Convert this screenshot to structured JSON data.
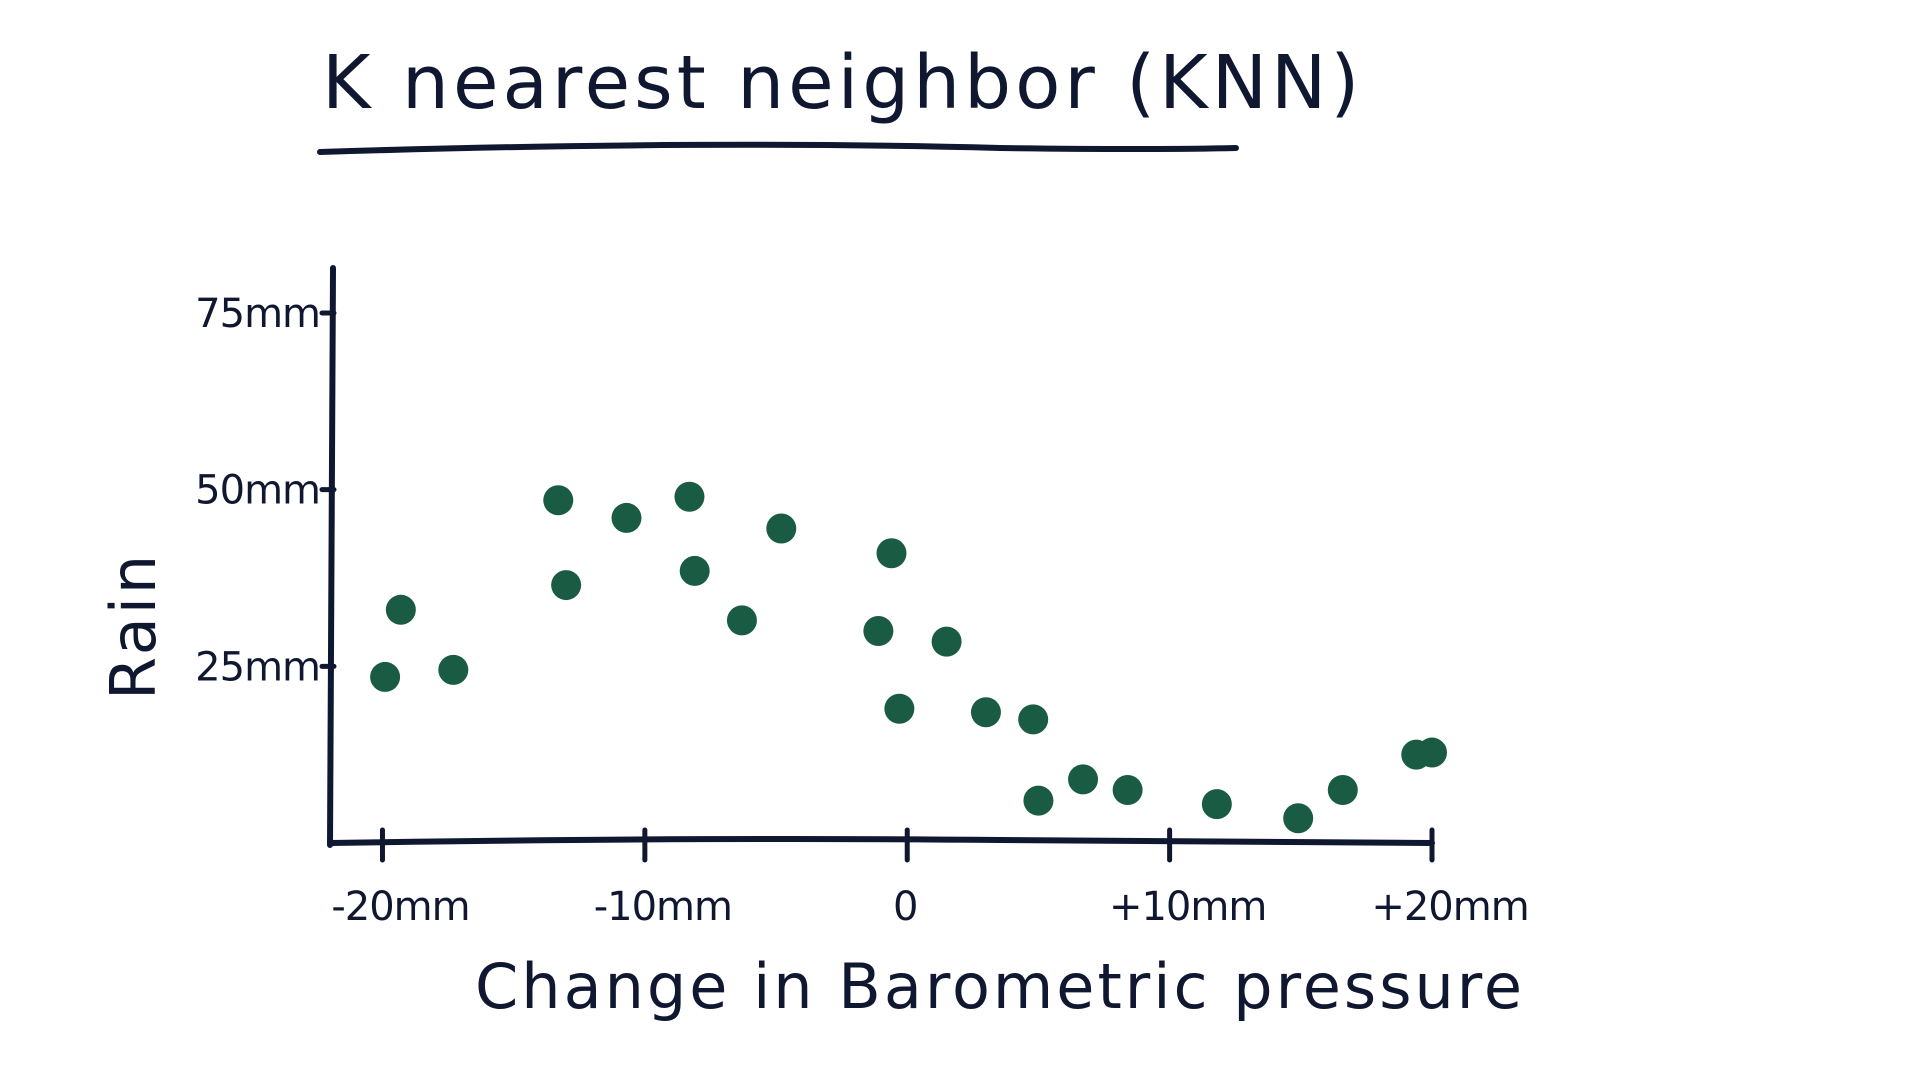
{
  "chart_data": {
    "type": "scatter",
    "title": "K nearest neighbor (KNN)",
    "xlabel": "Change in Barometric pressure",
    "ylabel": "Rain",
    "xlim": [
      -22,
      20
    ],
    "ylim": [
      0,
      75
    ],
    "x_ticks": [
      {
        "value": -20,
        "label": "-20mm"
      },
      {
        "value": -10,
        "label": "-10mm"
      },
      {
        "value": 0,
        "label": "0"
      },
      {
        "value": 10,
        "label": "+10mm"
      },
      {
        "value": 20,
        "label": "+20mm"
      }
    ],
    "y_ticks": [
      {
        "value": 75,
        "label": "75mm"
      },
      {
        "value": 50,
        "label": "50mm"
      },
      {
        "value": 25,
        "label": "25mm"
      }
    ],
    "grid": false,
    "point_color": "#1a5c43",
    "axis_color": "#0f1830",
    "points": [
      {
        "x": -19.3,
        "y": 33
      },
      {
        "x": -17.3,
        "y": 24.5
      },
      {
        "x": -19.9,
        "y": 23.5
      },
      {
        "x": -13.3,
        "y": 48.5
      },
      {
        "x": -13.0,
        "y": 36.5
      },
      {
        "x": -10.7,
        "y": 46
      },
      {
        "x": -8.3,
        "y": 49
      },
      {
        "x": -8.1,
        "y": 38.5
      },
      {
        "x": -6.3,
        "y": 31.5
      },
      {
        "x": -4.8,
        "y": 44.5
      },
      {
        "x": -0.6,
        "y": 41
      },
      {
        "x": -1.1,
        "y": 30
      },
      {
        "x": -0.3,
        "y": 19
      },
      {
        "x": 1.5,
        "y": 28.5
      },
      {
        "x": 3.0,
        "y": 18.5
      },
      {
        "x": 4.8,
        "y": 17.5
      },
      {
        "x": 5.0,
        "y": 6
      },
      {
        "x": 6.7,
        "y": 9
      },
      {
        "x": 8.4,
        "y": 7.5
      },
      {
        "x": 11.8,
        "y": 5.5
      },
      {
        "x": 14.9,
        "y": 3.5
      },
      {
        "x": 16.6,
        "y": 7.5
      },
      {
        "x": 19.4,
        "y": 12.5
      },
      {
        "x": 20.0,
        "y": 12.8
      }
    ]
  }
}
